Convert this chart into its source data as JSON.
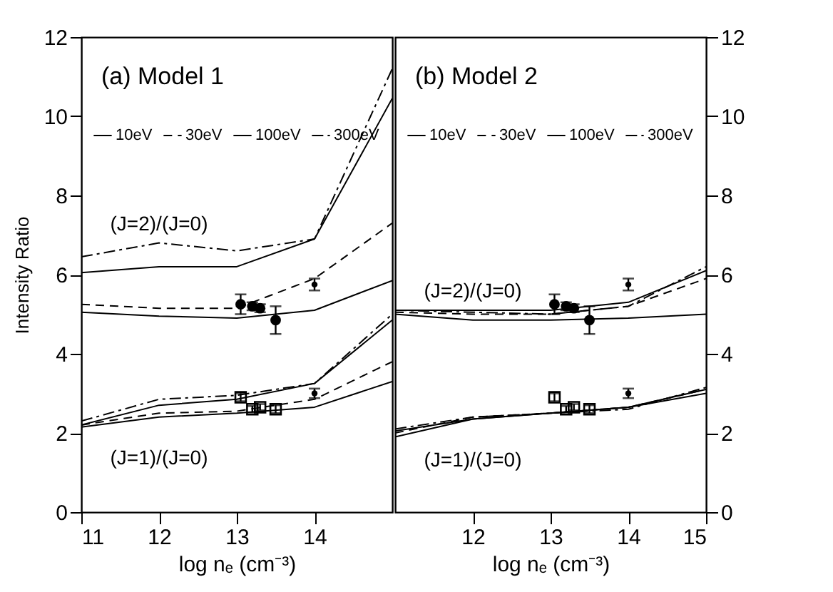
{
  "chart_data": [
    {
      "type": "line",
      "title": "(a) Model 1",
      "xlabel": "log nₑ (cm⁻³)",
      "ylabel": "Intensity Ratio",
      "x": [
        11,
        12,
        13,
        14,
        15
      ],
      "xlim": [
        11,
        15
      ],
      "xticks": [
        11,
        12,
        13,
        14
      ],
      "ylim": [
        0,
        12
      ],
      "yticks": [
        0,
        2,
        4,
        6,
        8,
        10,
        12
      ],
      "legend": "top",
      "grid": false,
      "annotations": [
        "(J=2)/(J=0)",
        "(J=1)/(J=0)"
      ],
      "series": [
        {
          "name": "10eV",
          "line_style": "solid",
          "color": "#000000",
          "values": [
            5.05,
            4.95,
            4.9,
            5.1,
            5.85
          ]
        },
        {
          "name": "30eV",
          "line_style": "dashed",
          "color": "#000000",
          "values": [
            5.25,
            5.15,
            5.15,
            5.9,
            7.3
          ]
        },
        {
          "name": "100eV",
          "line_style": "solid",
          "color": "#000000",
          "values": [
            6.05,
            6.2,
            6.2,
            6.9,
            10.45
          ]
        },
        {
          "name": "300eV",
          "line_style": "dashdot",
          "color": "#000000",
          "values": [
            6.45,
            6.8,
            6.6,
            6.9,
            11.2
          ]
        },
        {
          "name": "10eV",
          "line_style": "solid",
          "color": "#000000",
          "values": [
            2.15,
            2.4,
            2.5,
            2.65,
            3.3
          ]
        },
        {
          "name": "30eV",
          "line_style": "dashed",
          "color": "#000000",
          "values": [
            2.2,
            2.5,
            2.55,
            2.85,
            3.8
          ]
        },
        {
          "name": "100eV",
          "line_style": "solid",
          "color": "#000000",
          "values": [
            2.2,
            2.7,
            2.85,
            3.25,
            4.85
          ]
        },
        {
          "name": "300eV",
          "line_style": "dashdot",
          "color": "#000000",
          "values": [
            2.3,
            2.85,
            2.95,
            3.25,
            5.0
          ]
        },
        {
          "type": "scatter",
          "marker": "circle",
          "color": "#000000",
          "x": [
            13.05,
            13.2,
            13.3,
            13.5
          ],
          "values": [
            5.25,
            5.2,
            5.15,
            4.85
          ],
          "errors": [
            0.25,
            0.1,
            0.1,
            0.35
          ]
        },
        {
          "type": "scatter",
          "marker": "square",
          "color": "#000000",
          "x": [
            13.05,
            13.2,
            13.3,
            13.5
          ],
          "values": [
            2.9,
            2.6,
            2.65,
            2.6
          ],
          "errors": [
            0.1,
            0.08,
            0.08,
            0.1
          ]
        },
        {
          "type": "scatter",
          "color": "#000000",
          "x": [
            14,
            14
          ],
          "values": [
            5.75,
            3.0
          ],
          "errors": [
            0.15,
            0.12
          ]
        }
      ]
    },
    {
      "type": "line",
      "title": "(b) Model 2",
      "xlabel": "log nₑ (cm⁻³)",
      "x": [
        11,
        12,
        13,
        14,
        15
      ],
      "xlim": [
        11,
        15
      ],
      "xticks": [
        12,
        13,
        14,
        15
      ],
      "ylim": [
        0,
        12
      ],
      "yticks": [
        0,
        2,
        4,
        6,
        8,
        10,
        12
      ],
      "legend": "top",
      "grid": false,
      "annotations": [
        "(J=2)/(J=0)",
        "(J=1)/(J=0)"
      ],
      "series": [
        {
          "name": "10eV",
          "line_style": "solid",
          "color": "#000000",
          "values": [
            5.0,
            4.85,
            4.85,
            4.9,
            5.0
          ]
        },
        {
          "name": "30eV",
          "line_style": "dashed",
          "color": "#000000",
          "values": [
            5.05,
            5.0,
            5.0,
            5.2,
            5.9
          ]
        },
        {
          "name": "100eV",
          "line_style": "solid",
          "color": "#000000",
          "values": [
            5.1,
            5.1,
            5.1,
            5.3,
            6.1
          ]
        },
        {
          "name": "300eV",
          "line_style": "dashdot",
          "color": "#000000",
          "values": [
            5.1,
            5.05,
            5.0,
            5.2,
            6.2
          ]
        },
        {
          "name": "10eV",
          "line_style": "solid",
          "color": "#000000",
          "values": [
            2.05,
            2.35,
            2.5,
            2.65,
            3.0
          ]
        },
        {
          "name": "30eV",
          "line_style": "dashed",
          "color": "#000000",
          "values": [
            2.0,
            2.4,
            2.5,
            2.65,
            3.1
          ]
        },
        {
          "name": "100eV",
          "line_style": "solid",
          "color": "#000000",
          "values": [
            1.9,
            2.35,
            2.5,
            2.65,
            3.1
          ]
        },
        {
          "name": "300eV",
          "line_style": "dashdot",
          "color": "#000000",
          "values": [
            2.1,
            2.4,
            2.5,
            2.6,
            3.15
          ]
        },
        {
          "type": "scatter",
          "marker": "circle",
          "color": "#000000",
          "x": [
            13.05,
            13.2,
            13.3,
            13.5
          ],
          "values": [
            5.25,
            5.2,
            5.15,
            4.85
          ],
          "errors": [
            0.25,
            0.1,
            0.1,
            0.35
          ]
        },
        {
          "type": "scatter",
          "marker": "square",
          "color": "#000000",
          "x": [
            13.05,
            13.2,
            13.3,
            13.5
          ],
          "values": [
            2.9,
            2.6,
            2.65,
            2.6
          ],
          "errors": [
            0.1,
            0.08,
            0.08,
            0.1
          ]
        },
        {
          "type": "scatter",
          "color": "#000000",
          "x": [
            14,
            14
          ],
          "values": [
            5.75,
            3.0
          ],
          "errors": [
            0.15,
            0.12
          ]
        }
      ]
    }
  ]
}
